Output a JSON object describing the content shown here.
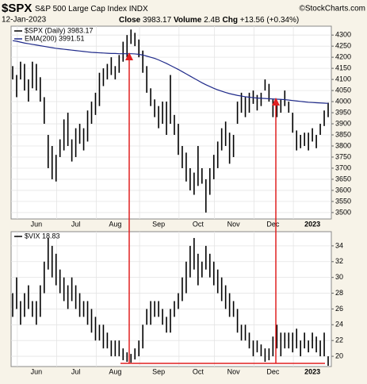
{
  "header": {
    "symbol": "$SPX",
    "name": "S&P 500 Large Cap Index",
    "exchange": "INDX",
    "date": "12-Jan-2023",
    "close_label": "Close",
    "close": "3983.17",
    "volume_label": "Volume",
    "volume": "2.4B",
    "chg_label": "Chg",
    "chg": "+13.56 (+0.34%)",
    "credit": "©StockCharts.com"
  },
  "chart_data": [
    {
      "type": "ohlc",
      "categories": [
        null,
        null,
        null,
        null,
        null,
        null,
        "Jun",
        null,
        null,
        null,
        null,
        null,
        null,
        null,
        null,
        null,
        "Jul",
        null,
        null,
        null,
        null,
        null,
        null,
        null,
        null,
        null,
        "Aug",
        null,
        null,
        null,
        null,
        null,
        null,
        null,
        null,
        null,
        null,
        "Sep",
        null,
        null,
        null,
        null,
        null,
        null,
        null,
        null,
        null,
        "Oct",
        null,
        null,
        null,
        null,
        null,
        null,
        null,
        null,
        "Nov",
        null,
        null,
        null,
        null,
        null,
        null,
        null,
        null,
        null,
        "Dec",
        null,
        null,
        null,
        null,
        null,
        null,
        null,
        null,
        null,
        "2023",
        null,
        null,
        null,
        null
      ],
      "series": [
        {
          "name": "$SPX (Daily) 3983.17",
          "color": "#000000",
          "high": [
            4160,
            4120,
            4180,
            4170,
            4100,
            4180,
            4170,
            4110,
            4020,
            3850,
            3800,
            3760,
            3830,
            3920,
            3950,
            3830,
            3880,
            3900,
            3880,
            3960,
            4000,
            4040,
            4130,
            4150,
            4170,
            4200,
            4160,
            4210,
            4270,
            4300,
            4325,
            4310,
            4280,
            4230,
            4160,
            4060,
            4010,
            3980,
            4000,
            4000,
            4120,
            3940,
            3900,
            3800,
            3770,
            3700,
            3680,
            3800,
            3700,
            3650,
            3700,
            3760,
            3820,
            3880,
            3910,
            3860,
            3850,
            4000,
            4040,
            4020,
            4040,
            4050,
            4030,
            4040,
            4100,
            4080,
            4010,
            4000,
            4010,
            4050,
            4000,
            3950,
            3870,
            3850,
            3860,
            3860,
            3880,
            3850,
            3900,
            3960,
            3995
          ],
          "low": [
            4100,
            4020,
            4100,
            4050,
            4000,
            4060,
            4050,
            4000,
            3900,
            3700,
            3650,
            3640,
            3750,
            3780,
            3800,
            3730,
            3750,
            3810,
            3780,
            3820,
            3900,
            3940,
            3980,
            4070,
            4100,
            4120,
            4100,
            4130,
            4180,
            4200,
            4260,
            4250,
            4200,
            4130,
            4040,
            3980,
            3930,
            3880,
            3900,
            3850,
            3900,
            3850,
            3760,
            3700,
            3640,
            3600,
            3580,
            3620,
            3630,
            3500,
            3580,
            3650,
            3700,
            3780,
            3800,
            3720,
            3750,
            3900,
            3950,
            3930,
            3950,
            3990,
            3960,
            3980,
            4050,
            4000,
            3930,
            3930,
            3950,
            3980,
            3950,
            3860,
            3780,
            3790,
            3800,
            3780,
            3820,
            3790,
            3850,
            3890,
            3930
          ]
        },
        {
          "name": "EMA(200) 3991.51",
          "color": "#1f2a8a",
          "type": "line",
          "values": [
            4275,
            4272,
            4268,
            4264,
            4261,
            4258,
            4255,
            4252,
            4249,
            4246,
            4243,
            4240,
            4238,
            4236,
            4234,
            4232,
            4230,
            4228,
            4226,
            4224,
            4222,
            4221,
            4220,
            4219,
            4218,
            4217,
            4217,
            4216,
            4216,
            4216,
            4216,
            4215,
            4213,
            4210,
            4205,
            4200,
            4195,
            4188,
            4180,
            4172,
            4163,
            4154,
            4145,
            4135,
            4125,
            4115,
            4105,
            4095,
            4085,
            4076,
            4068,
            4060,
            4053,
            4047,
            4041,
            4036,
            4032,
            4028,
            4025,
            4022,
            4020,
            4018,
            4016,
            4015,
            4014,
            4013,
            4012,
            4011,
            4010,
            4009,
            4007,
            4005,
            4003,
            4001,
            3999,
            3997,
            3996,
            3995,
            3994,
            3993,
            3992
          ]
        }
      ],
      "ylim": [
        3471,
        4340
      ],
      "yticks": [
        3500,
        3550,
        3600,
        3650,
        3700,
        3750,
        3800,
        3850,
        3900,
        3950,
        4000,
        4050,
        4100,
        4150,
        4200,
        4250,
        4300
      ],
      "grid": true
    },
    {
      "type": "ohlc",
      "categories": [
        null,
        null,
        null,
        null,
        null,
        null,
        "Jun",
        null,
        null,
        null,
        null,
        null,
        null,
        null,
        null,
        null,
        "Jul",
        null,
        null,
        null,
        null,
        null,
        null,
        null,
        null,
        null,
        "Aug",
        null,
        null,
        null,
        null,
        null,
        null,
        null,
        null,
        null,
        null,
        "Sep",
        null,
        null,
        null,
        null,
        null,
        null,
        null,
        null,
        null,
        "Oct",
        null,
        null,
        null,
        null,
        null,
        null,
        null,
        null,
        "Nov",
        null,
        null,
        null,
        null,
        null,
        null,
        null,
        null,
        null,
        "Dec",
        null,
        null,
        null,
        null,
        null,
        null,
        null,
        null,
        null,
        "2023",
        null,
        null,
        null,
        null
      ],
      "series": [
        {
          "name": "$VIX 18.83",
          "color": "#000000",
          "high": [
            28,
            30,
            27,
            28,
            29,
            27,
            27,
            29,
            32,
            35,
            34,
            33,
            31,
            30,
            29,
            30,
            29,
            28,
            27,
            27,
            26,
            25,
            24,
            24,
            23,
            22,
            22,
            22,
            21,
            20.5,
            20.3,
            21,
            22,
            24,
            26,
            27,
            27,
            27,
            26,
            25,
            26,
            27,
            28,
            30,
            32,
            34,
            35,
            33,
            32,
            34,
            33,
            32,
            31,
            30,
            29,
            28,
            27,
            26,
            24,
            24,
            23,
            22,
            22,
            21.5,
            21,
            21,
            22.5,
            24,
            23,
            23,
            23,
            23,
            23.5,
            22,
            23,
            22,
            23,
            22.5,
            22,
            23,
            20
          ],
          "low": [
            25,
            26,
            24,
            25,
            26,
            25,
            24,
            25,
            28,
            31,
            30,
            29,
            28,
            27,
            26,
            27,
            26,
            25,
            25,
            24,
            23,
            22,
            22,
            21,
            21,
            20,
            20,
            20,
            19.5,
            19.3,
            19.2,
            19.6,
            20,
            21,
            24,
            24,
            25,
            25,
            24,
            23,
            23,
            25,
            26,
            27,
            28,
            30,
            31,
            29,
            30,
            31,
            30,
            29,
            28,
            27,
            26,
            25,
            25,
            23,
            22,
            22,
            21,
            20,
            20.5,
            20,
            19.3,
            19.5,
            20,
            21,
            20,
            21,
            21,
            20.5,
            21,
            20,
            21,
            20.5,
            21,
            20.5,
            20,
            20,
            18.8
          ]
        }
      ],
      "ylim": [
        18.7,
        35.8
      ],
      "yticks": [
        20,
        22,
        24,
        26,
        28,
        30,
        32,
        34
      ],
      "grid": true
    }
  ]
}
